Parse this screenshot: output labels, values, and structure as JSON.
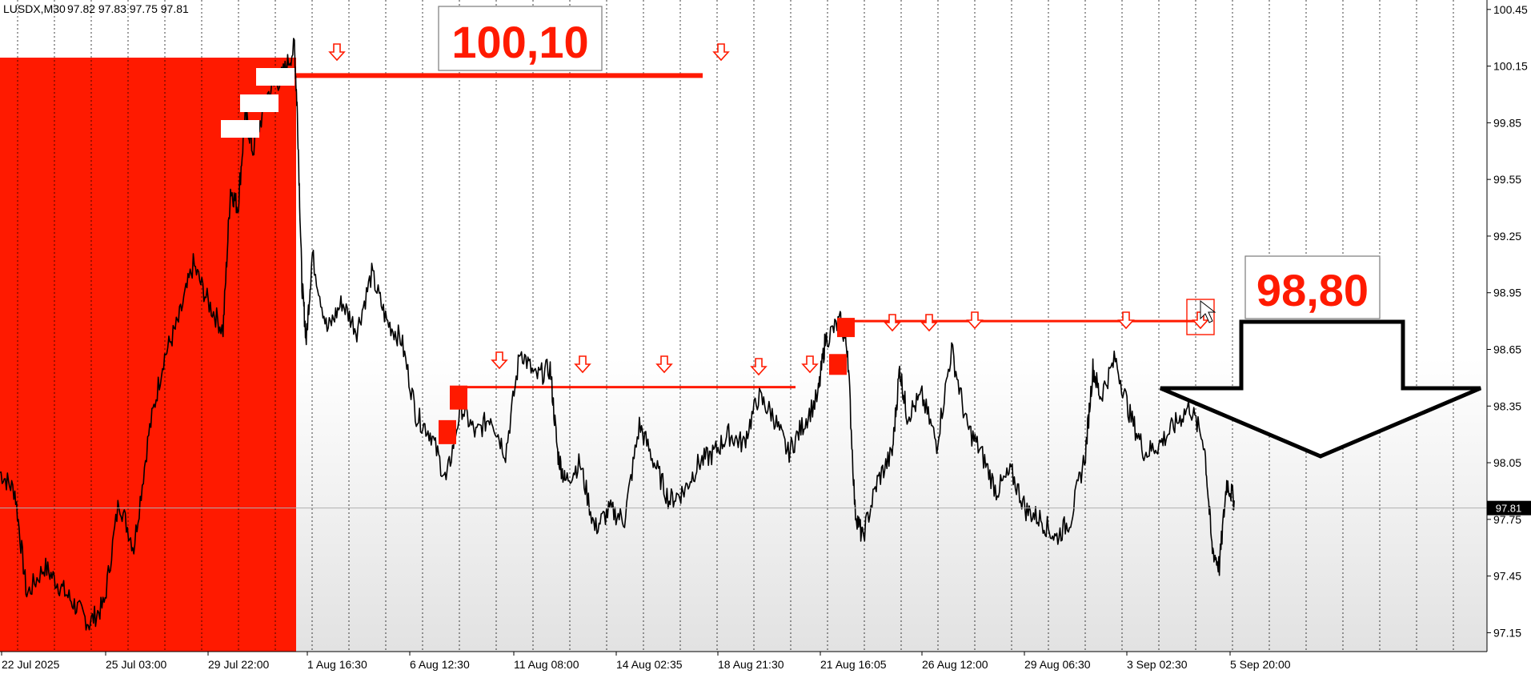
{
  "header": {
    "symbol": "LUSDX,M30",
    "ohlc": "97.82 97.83 97.75 97.81"
  },
  "colors": {
    "accent_red": "#ff1a00",
    "price_line": "#000000",
    "grid": "#000000",
    "current_price_line": "#b0b0b0"
  },
  "annotations": {
    "upper_level_label": "100,10",
    "lower_level_label": "98,80",
    "down_arrow_icon": "big-down-arrow-icon",
    "small_arrow_icon": "small-down-arrow-icon"
  },
  "chart_data": {
    "type": "line",
    "ylim": [
      97.05,
      100.5
    ],
    "y_ticks": [
      100.45,
      100.15,
      99.85,
      99.55,
      99.25,
      98.95,
      98.65,
      98.35,
      98.05,
      97.75,
      97.45,
      97.15
    ],
    "y_tick_labels": [
      "100.45",
      "100.15",
      "99.85",
      "99.55",
      "99.25",
      "98.95",
      "98.65",
      "98.35",
      "98.05",
      "97.75",
      "97.45",
      "97.15"
    ],
    "x_tick_labels": [
      "22 Jul 2025",
      "25 Jul 03:00",
      "29 Jul 22:00",
      "1 Aug 16:30",
      "6 Aug 12:30",
      "11 Aug 08:00",
      "14 Aug 02:35",
      "18 Aug 21:30",
      "21 Aug 16:05",
      "26 Aug 12:00",
      "29 Aug 06:30",
      "3 Sep 02:30",
      "5 Sep 20:00"
    ],
    "current_price": 97.81,
    "current_price_label": "97.81",
    "grid": true,
    "price_points": [
      {
        "x": 0.0,
        "y": 98.0
      },
      {
        "x": 0.01,
        "y": 97.9
      },
      {
        "x": 0.018,
        "y": 97.35
      },
      {
        "x": 0.03,
        "y": 97.5
      },
      {
        "x": 0.04,
        "y": 97.4
      },
      {
        "x": 0.05,
        "y": 97.3
      },
      {
        "x": 0.06,
        "y": 97.2
      },
      {
        "x": 0.07,
        "y": 97.3
      },
      {
        "x": 0.08,
        "y": 97.85
      },
      {
        "x": 0.09,
        "y": 97.6
      },
      {
        "x": 0.1,
        "y": 98.2
      },
      {
        "x": 0.11,
        "y": 98.6
      },
      {
        "x": 0.12,
        "y": 98.8
      },
      {
        "x": 0.13,
        "y": 99.1
      },
      {
        "x": 0.14,
        "y": 98.9
      },
      {
        "x": 0.15,
        "y": 98.75
      },
      {
        "x": 0.155,
        "y": 99.5
      },
      {
        "x": 0.16,
        "y": 99.4
      },
      {
        "x": 0.165,
        "y": 99.9
      },
      {
        "x": 0.17,
        "y": 99.7
      },
      {
        "x": 0.18,
        "y": 100.0
      },
      {
        "x": 0.19,
        "y": 100.1
      },
      {
        "x": 0.198,
        "y": 100.25
      },
      {
        "x": 0.2,
        "y": 99.9
      },
      {
        "x": 0.203,
        "y": 99.0
      },
      {
        "x": 0.206,
        "y": 98.7
      },
      {
        "x": 0.21,
        "y": 99.15
      },
      {
        "x": 0.22,
        "y": 98.75
      },
      {
        "x": 0.23,
        "y": 98.9
      },
      {
        "x": 0.24,
        "y": 98.75
      },
      {
        "x": 0.25,
        "y": 99.05
      },
      {
        "x": 0.26,
        "y": 98.8
      },
      {
        "x": 0.27,
        "y": 98.7
      },
      {
        "x": 0.28,
        "y": 98.3
      },
      {
        "x": 0.29,
        "y": 98.2
      },
      {
        "x": 0.3,
        "y": 97.95
      },
      {
        "x": 0.31,
        "y": 98.35
      },
      {
        "x": 0.32,
        "y": 98.2
      },
      {
        "x": 0.33,
        "y": 98.3
      },
      {
        "x": 0.34,
        "y": 98.1
      },
      {
        "x": 0.35,
        "y": 98.65
      },
      {
        "x": 0.36,
        "y": 98.5
      },
      {
        "x": 0.37,
        "y": 98.55
      },
      {
        "x": 0.375,
        "y": 98.1
      },
      {
        "x": 0.38,
        "y": 97.95
      },
      {
        "x": 0.39,
        "y": 98.05
      },
      {
        "x": 0.4,
        "y": 97.7
      },
      {
        "x": 0.41,
        "y": 97.8
      },
      {
        "x": 0.42,
        "y": 97.75
      },
      {
        "x": 0.43,
        "y": 98.25
      },
      {
        "x": 0.44,
        "y": 98.05
      },
      {
        "x": 0.45,
        "y": 97.85
      },
      {
        "x": 0.46,
        "y": 97.9
      },
      {
        "x": 0.47,
        "y": 98.05
      },
      {
        "x": 0.48,
        "y": 98.1
      },
      {
        "x": 0.49,
        "y": 98.2
      },
      {
        "x": 0.5,
        "y": 98.15
      },
      {
        "x": 0.51,
        "y": 98.4
      },
      {
        "x": 0.52,
        "y": 98.3
      },
      {
        "x": 0.53,
        "y": 98.1
      },
      {
        "x": 0.54,
        "y": 98.25
      },
      {
        "x": 0.55,
        "y": 98.4
      },
      {
        "x": 0.555,
        "y": 98.7
      },
      {
        "x": 0.565,
        "y": 98.8
      },
      {
        "x": 0.57,
        "y": 98.65
      },
      {
        "x": 0.575,
        "y": 97.8
      },
      {
        "x": 0.58,
        "y": 97.65
      },
      {
        "x": 0.59,
        "y": 97.95
      },
      {
        "x": 0.6,
        "y": 98.1
      },
      {
        "x": 0.605,
        "y": 98.55
      },
      {
        "x": 0.61,
        "y": 98.3
      },
      {
        "x": 0.62,
        "y": 98.4
      },
      {
        "x": 0.63,
        "y": 98.15
      },
      {
        "x": 0.64,
        "y": 98.65
      },
      {
        "x": 0.65,
        "y": 98.25
      },
      {
        "x": 0.66,
        "y": 98.1
      },
      {
        "x": 0.67,
        "y": 97.9
      },
      {
        "x": 0.68,
        "y": 98.0
      },
      {
        "x": 0.69,
        "y": 97.8
      },
      {
        "x": 0.7,
        "y": 97.75
      },
      {
        "x": 0.71,
        "y": 97.65
      },
      {
        "x": 0.72,
        "y": 97.75
      },
      {
        "x": 0.73,
        "y": 98.1
      },
      {
        "x": 0.735,
        "y": 98.55
      },
      {
        "x": 0.74,
        "y": 98.4
      },
      {
        "x": 0.75,
        "y": 98.6
      },
      {
        "x": 0.76,
        "y": 98.3
      },
      {
        "x": 0.77,
        "y": 98.1
      },
      {
        "x": 0.78,
        "y": 98.15
      },
      {
        "x": 0.79,
        "y": 98.25
      },
      {
        "x": 0.8,
        "y": 98.35
      },
      {
        "x": 0.81,
        "y": 98.15
      },
      {
        "x": 0.815,
        "y": 97.6
      },
      {
        "x": 0.82,
        "y": 97.5
      },
      {
        "x": 0.825,
        "y": 97.95
      },
      {
        "x": 0.83,
        "y": 97.85
      }
    ]
  }
}
